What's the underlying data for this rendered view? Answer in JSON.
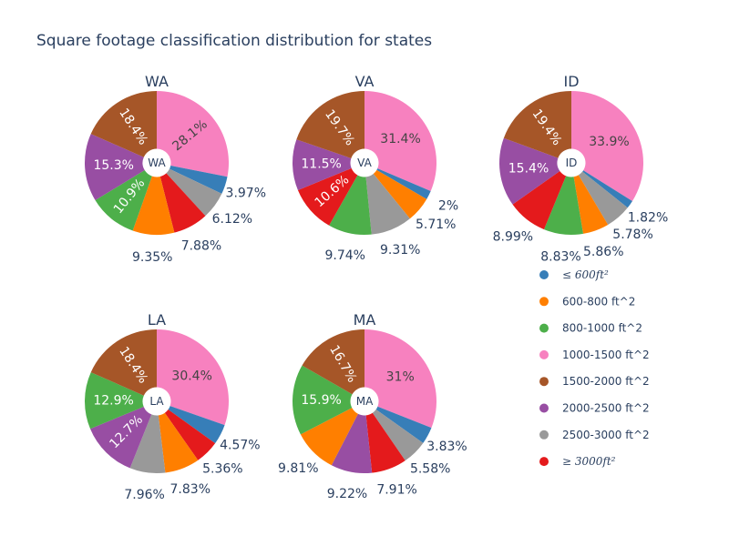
{
  "chart_data": {
    "type": "pie",
    "title": "Square footage classification distribution for states",
    "categories": [
      "≤ 600ft²",
      "600-800 ft^2",
      "800-1000 ft^2",
      "1000-1500 ft^2",
      "1500-2000 ft^2",
      "2000-2500 ft^2",
      "2500-3000 ft^2",
      "≥ 3000ft²"
    ],
    "legend": [
      {
        "label": "≤ 600ft²",
        "math": true,
        "color": "#377eb8"
      },
      {
        "label": "600-800 ft^2",
        "math": false,
        "color": "#ff7f00"
      },
      {
        "label": "800-1000 ft^2",
        "math": false,
        "color": "#4daf4a"
      },
      {
        "label": "1000-1500 ft^2",
        "math": false,
        "color": "#f781bf"
      },
      {
        "label": "1500-2000 ft^2",
        "math": false,
        "color": "#a65628"
      },
      {
        "label": "2000-2500 ft^2",
        "math": false,
        "color": "#984ea3"
      },
      {
        "label": "2500-3000 ft^2",
        "math": false,
        "color": "#999999"
      },
      {
        "label": "≥ 3000ft²",
        "math": true,
        "color": "#e41a1c"
      }
    ],
    "legend_placement": "right",
    "hole_label": "state",
    "pies": [
      {
        "name": "WA",
        "slices": [
          {
            "cat": 3,
            "value": 28.1,
            "label": "28.1%",
            "pos": "inside-rot"
          },
          {
            "cat": 0,
            "value": 3.97,
            "label": "3.97%",
            "pos": "outside"
          },
          {
            "cat": 6,
            "value": 6.12,
            "label": "6.12%",
            "pos": "outside"
          },
          {
            "cat": 7,
            "value": 7.88,
            "label": "7.88%",
            "pos": "outside"
          },
          {
            "cat": 1,
            "value": 9.35,
            "label": "9.35%",
            "pos": "outside"
          },
          {
            "cat": 2,
            "value": 10.9,
            "label": "10.9%",
            "pos": "inside-rot"
          },
          {
            "cat": 5,
            "value": 15.3,
            "label": "15.3%",
            "pos": "inside"
          },
          {
            "cat": 4,
            "value": 18.4,
            "label": "18.4%",
            "pos": "inside-rot"
          }
        ]
      },
      {
        "name": "VA",
        "slices": [
          {
            "cat": 3,
            "value": 31.4,
            "label": "31.4%",
            "pos": "inside"
          },
          {
            "cat": 0,
            "value": 2,
            "label": "2%",
            "pos": "outside"
          },
          {
            "cat": 1,
            "value": 5.71,
            "label": "5.71%",
            "pos": "outside"
          },
          {
            "cat": 6,
            "value": 9.31,
            "label": "9.31%",
            "pos": "outside"
          },
          {
            "cat": 2,
            "value": 9.74,
            "label": "9.74%",
            "pos": "outside"
          },
          {
            "cat": 7,
            "value": 10.6,
            "label": "10.6%",
            "pos": "inside-rot"
          },
          {
            "cat": 5,
            "value": 11.5,
            "label": "11.5%",
            "pos": "inside"
          },
          {
            "cat": 4,
            "value": 19.7,
            "label": "19.7%",
            "pos": "inside-rot"
          }
        ]
      },
      {
        "name": "ID",
        "slices": [
          {
            "cat": 3,
            "value": 33.9,
            "label": "33.9%",
            "pos": "inside"
          },
          {
            "cat": 0,
            "value": 1.82,
            "label": "1.82%",
            "pos": "outside"
          },
          {
            "cat": 6,
            "value": 5.78,
            "label": "5.78%",
            "pos": "outside"
          },
          {
            "cat": 1,
            "value": 5.86,
            "label": "5.86%",
            "pos": "outside"
          },
          {
            "cat": 2,
            "value": 8.83,
            "label": "8.83%",
            "pos": "outside"
          },
          {
            "cat": 7,
            "value": 8.99,
            "label": "8.99%",
            "pos": "outside"
          },
          {
            "cat": 5,
            "value": 15.4,
            "label": "15.4%",
            "pos": "inside"
          },
          {
            "cat": 4,
            "value": 19.4,
            "label": "19.4%",
            "pos": "inside-rot"
          }
        ]
      },
      {
        "name": "LA",
        "slices": [
          {
            "cat": 3,
            "value": 30.4,
            "label": "30.4%",
            "pos": "inside"
          },
          {
            "cat": 0,
            "value": 4.57,
            "label": "4.57%",
            "pos": "outside"
          },
          {
            "cat": 7,
            "value": 5.36,
            "label": "5.36%",
            "pos": "outside"
          },
          {
            "cat": 1,
            "value": 7.83,
            "label": "7.83%",
            "pos": "outside"
          },
          {
            "cat": 6,
            "value": 7.96,
            "label": "7.96%",
            "pos": "outside"
          },
          {
            "cat": 5,
            "value": 12.7,
            "label": "12.7%",
            "pos": "inside-rot"
          },
          {
            "cat": 2,
            "value": 12.9,
            "label": "12.9%",
            "pos": "inside"
          },
          {
            "cat": 4,
            "value": 18.4,
            "label": "18.4%",
            "pos": "inside-rot"
          }
        ]
      },
      {
        "name": "MA",
        "slices": [
          {
            "cat": 3,
            "value": 31,
            "label": "31%",
            "pos": "inside"
          },
          {
            "cat": 0,
            "value": 3.83,
            "label": "3.83%",
            "pos": "outside"
          },
          {
            "cat": 6,
            "value": 5.58,
            "label": "5.58%",
            "pos": "outside"
          },
          {
            "cat": 7,
            "value": 7.91,
            "label": "7.91%",
            "pos": "outside"
          },
          {
            "cat": 5,
            "value": 9.22,
            "label": "9.22%",
            "pos": "outside"
          },
          {
            "cat": 1,
            "value": 9.81,
            "label": "9.81%",
            "pos": "outside"
          },
          {
            "cat": 2,
            "value": 15.9,
            "label": "15.9%",
            "pos": "inside"
          },
          {
            "cat": 4,
            "value": 16.7,
            "label": "16.7%",
            "pos": "inside-rot"
          }
        ]
      }
    ]
  }
}
